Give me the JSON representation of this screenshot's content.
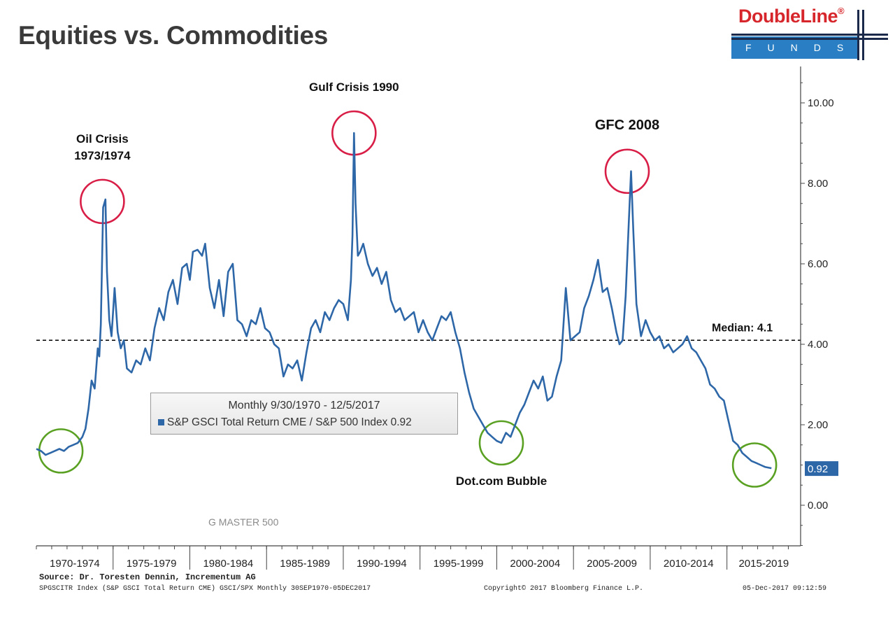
{
  "page": {
    "title": "Equities vs. Commodities",
    "logo_text": "DoubleLine",
    "logo_reg": "®",
    "logo_sub": "FUNDS"
  },
  "footer": {
    "source": "Source: Dr. Toresten Dennin, Incrementum AG",
    "series_code": "SPGSCITR Index (S&P GSCI Total Return CME) GSCI/SPX  Monthly 30SEP1970-05DEC2017",
    "copyright": "Copyright© 2017 Bloomberg Finance L.P.",
    "datestamp": "05-Dec-2017 09:12:59"
  },
  "legend": {
    "title": "Monthly 9/30/1970 - 12/5/2017",
    "entry": "S&P GSCI Total Return CME / S&P 500 Index 0.92"
  },
  "colors": {
    "line": "#2e67a8",
    "peak_circle": "#d81e46",
    "trough_circle": "#5aa123",
    "median_line": "#000000",
    "last_value_tag": "#2e67a8"
  },
  "chart_data": {
    "type": "line",
    "x_unit": "year",
    "x_categories": [
      "1970-1974",
      "1975-1979",
      "1980-1984",
      "1985-1989",
      "1990-1994",
      "1995-1999",
      "2000-2004",
      "2005-2009",
      "2010-2014",
      "2015-2019"
    ],
    "y_ticks": [
      "10.00",
      "8.00",
      "6.00",
      "4.00",
      "2.00",
      "0.00"
    ],
    "y_tick_values": [
      10,
      8,
      6,
      4,
      2,
      0
    ],
    "ylim": [
      -1,
      11
    ],
    "y_axis_side": "right",
    "last_value_label": "0.92",
    "median": {
      "value": 4.1,
      "label": "Median: 4.1"
    },
    "watermark": "G MASTER 500",
    "annotations": [
      {
        "label_lines": [
          "Oil Crisis",
          "1973/1974"
        ],
        "x": 1974.3,
        "y": 7.55,
        "kind": "peak"
      },
      {
        "label_lines": [
          "Gulf Crisis 1990"
        ],
        "x": 1990.7,
        "y": 9.25,
        "kind": "peak"
      },
      {
        "label_lines": [
          "GFC 2008"
        ],
        "x": 2008.5,
        "y": 8.3,
        "kind": "peak"
      },
      {
        "label_lines": [],
        "x": 1971.6,
        "y": 1.35,
        "kind": "trough"
      },
      {
        "label_lines": [
          "Dot.com Bubble"
        ],
        "x": 2000.3,
        "y": 1.55,
        "kind": "trough"
      },
      {
        "label_lines": [],
        "x": 2016.8,
        "y": 1.0,
        "kind": "trough"
      }
    ],
    "series": [
      {
        "name": "S&P GSCI Total Return CME / S&P 500 Index",
        "last_value": 0.92,
        "x": [
          1970.0,
          1970.3,
          1970.6,
          1970.9,
          1971.2,
          1971.5,
          1971.8,
          1972.1,
          1972.4,
          1972.7,
          1973.0,
          1973.2,
          1973.4,
          1973.6,
          1973.8,
          1974.0,
          1974.1,
          1974.2,
          1974.35,
          1974.5,
          1974.6,
          1974.75,
          1974.9,
          1975.1,
          1975.3,
          1975.5,
          1975.7,
          1975.9,
          1976.2,
          1976.5,
          1976.8,
          1977.1,
          1977.4,
          1977.7,
          1978.0,
          1978.3,
          1978.6,
          1978.9,
          1979.2,
          1979.5,
          1979.8,
          1980.0,
          1980.2,
          1980.5,
          1980.8,
          1981.0,
          1981.3,
          1981.6,
          1981.9,
          1982.2,
          1982.5,
          1982.8,
          1983.1,
          1983.4,
          1983.7,
          1984.0,
          1984.3,
          1984.6,
          1984.9,
          1985.2,
          1985.5,
          1985.8,
          1986.1,
          1986.4,
          1986.7,
          1987.0,
          1987.3,
          1987.6,
          1987.9,
          1988.2,
          1988.5,
          1988.8,
          1989.1,
          1989.4,
          1989.7,
          1990.0,
          1990.3,
          1990.5,
          1990.6,
          1990.7,
          1990.8,
          1990.95,
          1991.1,
          1991.3,
          1991.6,
          1991.9,
          1992.2,
          1992.5,
          1992.8,
          1993.1,
          1993.4,
          1993.7,
          1994.0,
          1994.3,
          1994.6,
          1994.9,
          1995.2,
          1995.5,
          1995.8,
          1996.1,
          1996.4,
          1996.7,
          1997.0,
          1997.3,
          1997.6,
          1997.9,
          1998.2,
          1998.5,
          1998.8,
          1999.1,
          1999.4,
          1999.7,
          2000.0,
          2000.3,
          2000.6,
          2000.9,
          2001.2,
          2001.5,
          2001.8,
          2002.1,
          2002.4,
          2002.7,
          2003.0,
          2003.3,
          2003.6,
          2003.9,
          2004.2,
          2004.5,
          2004.8,
          2005.1,
          2005.4,
          2005.7,
          2006.0,
          2006.3,
          2006.6,
          2006.9,
          2007.2,
          2007.5,
          2007.8,
          2008.0,
          2008.2,
          2008.4,
          2008.5,
          2008.6,
          2008.75,
          2008.9,
          2009.1,
          2009.4,
          2009.7,
          2010.0,
          2010.3,
          2010.6,
          2010.9,
          2011.2,
          2011.5,
          2011.8,
          2012.1,
          2012.4,
          2012.7,
          2013.0,
          2013.3,
          2013.6,
          2013.9,
          2014.2,
          2014.5,
          2014.8,
          2015.1,
          2015.4,
          2015.7,
          2016.0,
          2016.3,
          2016.6,
          2016.9,
          2017.2,
          2017.5,
          2017.9
        ],
        "values": [
          1.4,
          1.35,
          1.25,
          1.3,
          1.35,
          1.4,
          1.35,
          1.45,
          1.5,
          1.55,
          1.7,
          1.9,
          2.4,
          3.1,
          2.9,
          3.9,
          3.7,
          4.5,
          7.4,
          7.6,
          5.8,
          4.6,
          4.2,
          5.4,
          4.3,
          3.9,
          4.1,
          3.4,
          3.3,
          3.6,
          3.5,
          3.9,
          3.6,
          4.4,
          4.9,
          4.6,
          5.3,
          5.6,
          5.0,
          5.9,
          6.0,
          5.6,
          6.3,
          6.35,
          6.2,
          6.5,
          5.4,
          4.9,
          5.6,
          4.7,
          5.8,
          6.0,
          4.6,
          4.5,
          4.2,
          4.6,
          4.5,
          4.9,
          4.4,
          4.3,
          4.0,
          3.9,
          3.2,
          3.5,
          3.4,
          3.6,
          3.1,
          3.8,
          4.4,
          4.6,
          4.3,
          4.8,
          4.6,
          4.9,
          5.1,
          5.0,
          4.6,
          5.6,
          6.7,
          9.25,
          7.5,
          6.2,
          6.3,
          6.5,
          6.0,
          5.7,
          5.9,
          5.5,
          5.8,
          5.1,
          4.8,
          4.9,
          4.6,
          4.7,
          4.8,
          4.3,
          4.6,
          4.3,
          4.1,
          4.4,
          4.7,
          4.6,
          4.8,
          4.3,
          3.9,
          3.3,
          2.8,
          2.4,
          2.2,
          2.0,
          1.8,
          1.7,
          1.6,
          1.55,
          1.8,
          1.7,
          2.0,
          2.3,
          2.5,
          2.8,
          3.1,
          2.9,
          3.2,
          2.6,
          2.7,
          3.2,
          3.6,
          5.4,
          4.1,
          4.2,
          4.3,
          4.9,
          5.2,
          5.6,
          6.1,
          5.3,
          5.4,
          4.9,
          4.3,
          4.0,
          4.1,
          5.2,
          6.1,
          7.0,
          8.3,
          6.8,
          5.0,
          4.2,
          4.6,
          4.3,
          4.1,
          4.2,
          3.9,
          4.0,
          3.8,
          3.9,
          4.0,
          4.2,
          3.9,
          3.8,
          3.6,
          3.4,
          3.0,
          2.9,
          2.7,
          2.6,
          2.1,
          1.6,
          1.5,
          1.3,
          1.2,
          1.1,
          1.05,
          1.0,
          0.95,
          0.92
        ]
      }
    ]
  }
}
